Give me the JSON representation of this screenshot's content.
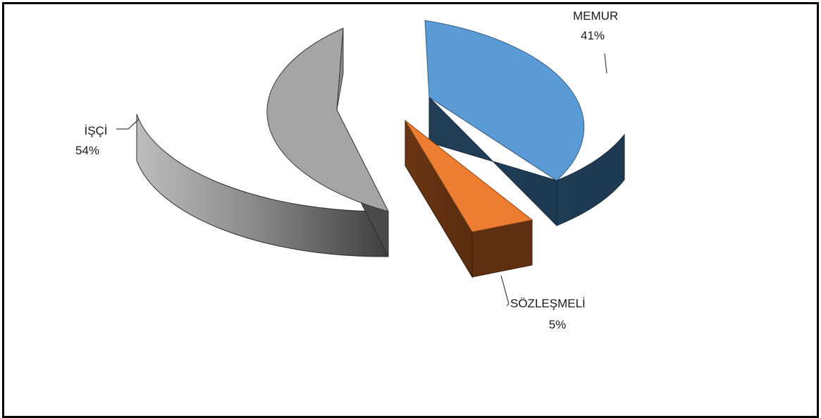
{
  "chart_data": {
    "type": "pie",
    "style": "3d-exploded",
    "legend": "none",
    "slices": [
      {
        "label": "MEMUR",
        "value": 41,
        "percent_label": "41%",
        "color": "#5b9bd5",
        "side_color": "#223f57"
      },
      {
        "label": "SÖZLEŞMELİ",
        "value": 5,
        "percent_label": "5%",
        "color": "#ed7d31",
        "side_color": "#613111"
      },
      {
        "label": "İŞÇİ",
        "value": 54,
        "percent_label": "54%",
        "color": "#a5a5a5",
        "side_color": "#5f5f5f"
      }
    ]
  }
}
